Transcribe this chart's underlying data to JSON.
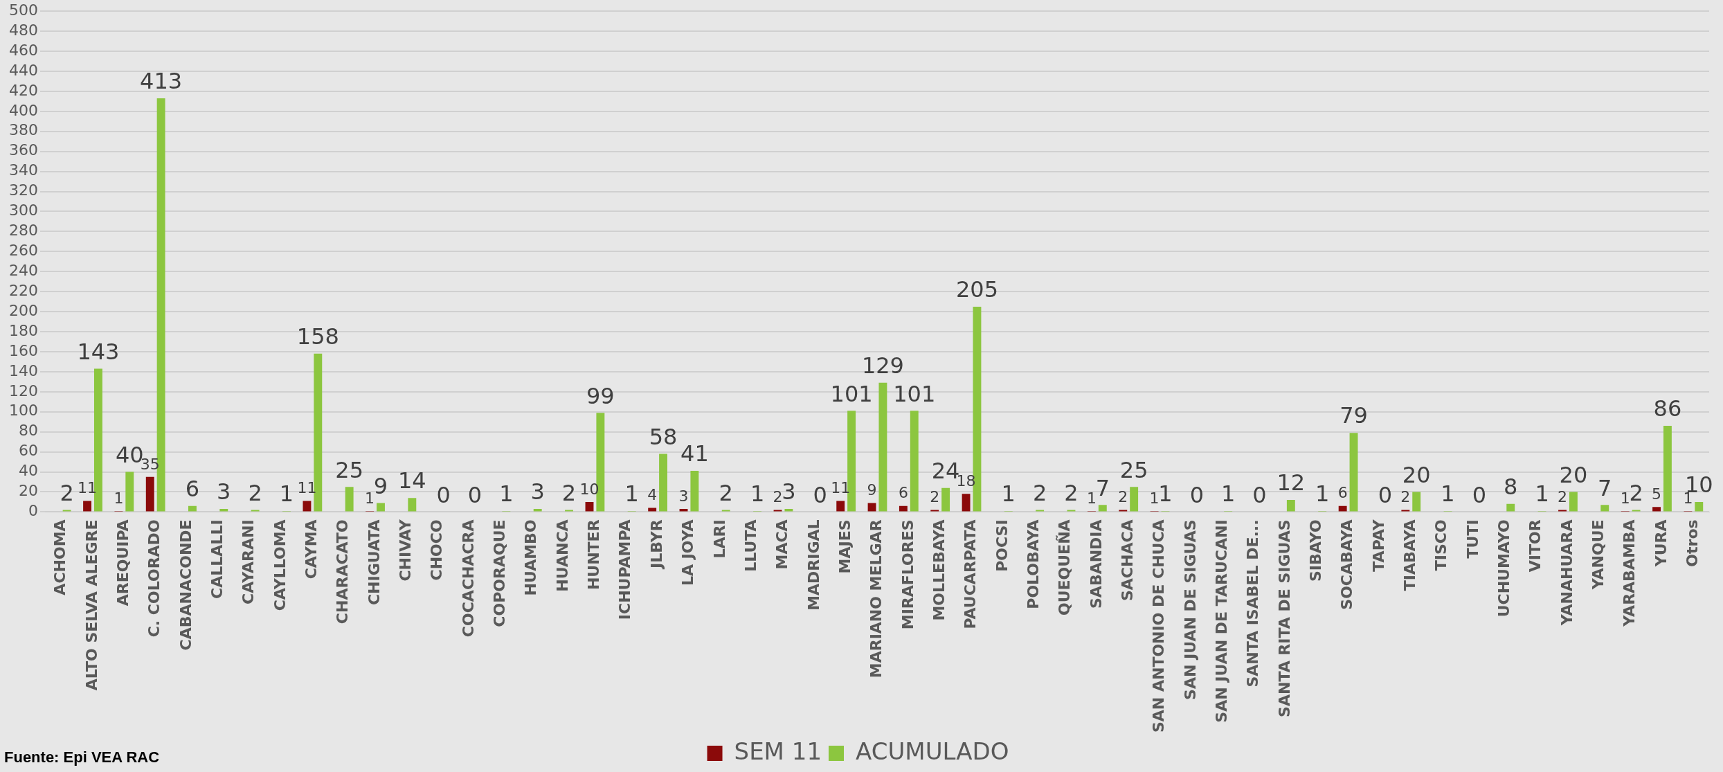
{
  "chart_data": {
    "type": "bar",
    "categories": [
      "ACHOMA",
      "ALTO SELVA ALEGRE",
      "AREQUIPA",
      "C. COLORADO",
      "CABANACONDE",
      "CALLALLI",
      "CAYARANI",
      "CAYLLOMA",
      "CAYMA",
      "CHARACATO",
      "CHIGUATA",
      "CHIVAY",
      "CHOCO",
      "COCACHACRA",
      "COPORAQUE",
      "HUAMBO",
      "HUANCA",
      "HUNTER",
      "ICHUPAMPA",
      "JLBYR",
      "LA JOYA",
      "LARI",
      "LLUTA",
      "MACA",
      "MADRIGAL",
      "MAJES",
      "MARIANO MELGAR",
      "MIRAFLORES",
      "MOLLEBAYA",
      "PAUCARPATA",
      "POCSI",
      "POLOBAYA",
      "QUEQUEÑA",
      "SABANDIA",
      "SACHACA",
      "SAN ANTONIO DE CHUCA",
      "SAN JUAN DE SIGUAS",
      "SAN JUAN DE TARUCANI",
      "SANTA ISABEL DE...",
      "SANTA RITA DE SIGUAS",
      "SIBAYO",
      "SOCABAYA",
      "TAPAY",
      "TIABAYA",
      "TISCO",
      "TUTI",
      "UCHUMAYO",
      "VITOR",
      "YANAHUARA",
      "YANQUE",
      "YARABAMBA",
      "YURA",
      "Otros"
    ],
    "series": [
      {
        "name": "SEM 11",
        "color": "#8b0a0a",
        "values": [
          null,
          11,
          1,
          35,
          null,
          null,
          null,
          null,
          11,
          null,
          1,
          null,
          null,
          null,
          null,
          null,
          null,
          10,
          null,
          4,
          3,
          null,
          null,
          2,
          null,
          11,
          9,
          6,
          2,
          18,
          null,
          null,
          null,
          1,
          2,
          1,
          null,
          null,
          null,
          null,
          null,
          6,
          null,
          2,
          null,
          null,
          null,
          null,
          2,
          null,
          1,
          5,
          1
        ],
        "value_labels": [
          null,
          "11",
          "1",
          "35",
          null,
          null,
          null,
          null,
          "11",
          null,
          "1",
          null,
          null,
          null,
          null,
          null,
          null,
          "10",
          null,
          "4",
          "3",
          null,
          null,
          "2",
          null,
          "11",
          "9",
          "6",
          "2",
          "18",
          null,
          null,
          null,
          "1",
          "2",
          "1",
          null,
          null,
          null,
          null,
          null,
          "6",
          null,
          "2",
          null,
          null,
          null,
          null,
          "2",
          null,
          "1",
          "5",
          "1"
        ]
      },
      {
        "name": "ACUMULADO",
        "color": "#8cc63f",
        "values": [
          2,
          143,
          40,
          413,
          6,
          3,
          2,
          1,
          158,
          25,
          9,
          14,
          0,
          0,
          1,
          3,
          2,
          99,
          1,
          58,
          41,
          2,
          1,
          3,
          0,
          101,
          129,
          101,
          24,
          205,
          1,
          2,
          2,
          7,
          25,
          1,
          0,
          1,
          0,
          12,
          1,
          79,
          0,
          20,
          1,
          0,
          8,
          1,
          20,
          7,
          2,
          86,
          10
        ],
        "value_labels": [
          "2",
          "143",
          "40",
          "413",
          "6",
          "3",
          "2",
          "1",
          "158",
          "25",
          "9",
          "14",
          "0",
          "0",
          "1",
          "3",
          "2",
          "99",
          "1",
          "58",
          "41",
          "2",
          "1",
          "3",
          "0",
          "101",
          "129",
          "101",
          "24",
          "205",
          "1",
          "2",
          "2",
          "7",
          "25",
          "1",
          "0",
          "1",
          "0",
          "12",
          "1",
          "79",
          "0",
          "20",
          "1",
          "0",
          "8",
          "1",
          "20",
          "7",
          "2",
          "86",
          "10"
        ]
      }
    ],
    "ylim": [
      0,
      500
    ],
    "yticks": [
      0,
      20,
      40,
      60,
      80,
      100,
      120,
      140,
      160,
      180,
      200,
      220,
      240,
      260,
      280,
      300,
      320,
      340,
      360,
      380,
      400,
      420,
      440,
      460,
      480,
      500
    ],
    "grid": "y",
    "legend": "bottom",
    "annotations": [
      "Fuente: Epi VEA RAC"
    ]
  }
}
